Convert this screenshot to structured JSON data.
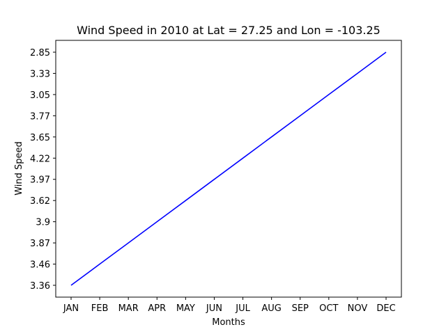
{
  "chart_data": {
    "type": "line",
    "title": "Wind Speed in 2010 at Lat = 27.25 and Lon = -103.25",
    "xlabel": "Months",
    "ylabel": "Wind Speed",
    "categories": [
      "JAN",
      "FEB",
      "MAR",
      "APR",
      "MAY",
      "JUN",
      "JUL",
      "AUG",
      "SEP",
      "OCT",
      "NOV",
      "DEC"
    ],
    "series": [
      {
        "values": [
          "3.36",
          "3.46",
          "3.87",
          "3.9",
          "3.62",
          "3.97",
          "4.22",
          "3.65",
          "3.77",
          "3.05",
          "3.33",
          "2.85"
        ],
        "color": "#0000ff"
      }
    ],
    "y_categorical": true,
    "grid": false,
    "legend": "none"
  }
}
